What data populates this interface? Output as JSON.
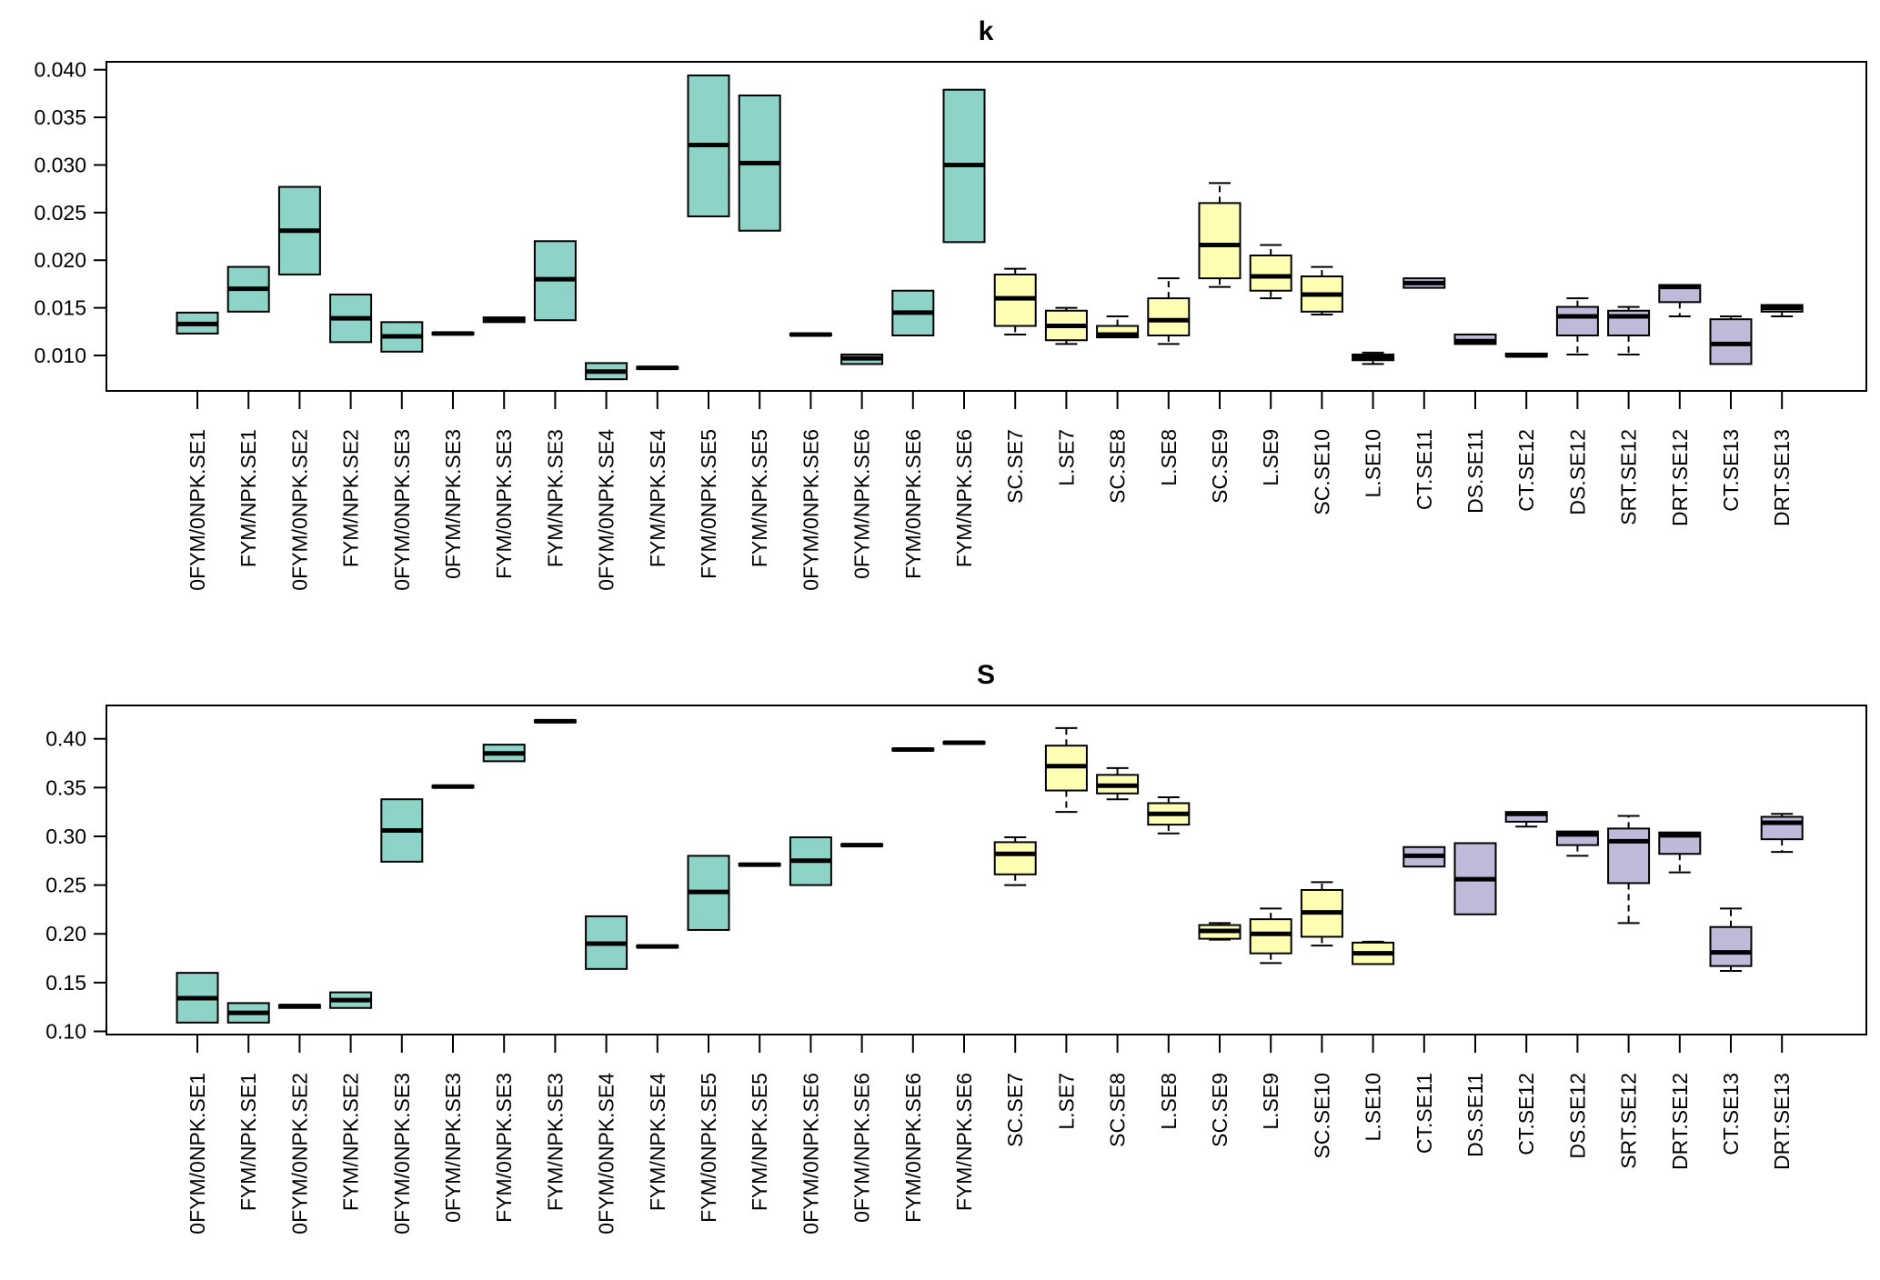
{
  "chart_data": [
    {
      "type": "boxplot",
      "title": "k",
      "xlabel": "",
      "ylabel": "",
      "ylim": [
        0.0075,
        0.0405
      ],
      "yticks": [
        "0.010",
        "0.015",
        "0.020",
        "0.025",
        "0.030",
        "0.035",
        "0.040"
      ],
      "ytick_values": [
        0.01,
        0.015,
        0.02,
        0.025,
        0.03,
        0.035,
        0.04
      ],
      "grid": false,
      "legend": "none",
      "categories": [
        "0FYM/0NPK.SE1",
        "FYM/NPK.SE1",
        "0FYM/0NPK.SE2",
        "FYM/NPK.SE2",
        "0FYM/0NPK.SE3",
        "0FYM/NPK.SE3",
        "FYM/0NPK.SE3",
        "FYM/NPK.SE3",
        "0FYM/0NPK.SE4",
        "FYM/NPK.SE4",
        "FYM/0NPK.SE5",
        "FYM/NPK.SE5",
        "0FYM/0NPK.SE6",
        "0FYM/NPK.SE6",
        "FYM/0NPK.SE6",
        "FYM/NPK.SE6",
        "SC.SE7",
        "L.SE7",
        "SC.SE8",
        "L.SE8",
        "SC.SE9",
        "L.SE9",
        "SC.SE10",
        "L.SE10",
        "CT.SE11",
        "DS.SE11",
        "CT.SE12",
        "DS.SE12",
        "SRT.SE12",
        "DRT.SE12",
        "CT.SE13",
        "DRT.SE13"
      ],
      "groups": [
        "A",
        "A",
        "A",
        "A",
        "A",
        "A",
        "A",
        "A",
        "A",
        "A",
        "A",
        "A",
        "A",
        "A",
        "A",
        "A",
        "B",
        "B",
        "B",
        "B",
        "B",
        "B",
        "B",
        "B",
        "C",
        "C",
        "C",
        "C",
        "C",
        "C",
        "C",
        "C"
      ],
      "boxes": [
        {
          "min": 0.0123,
          "q1": 0.0123,
          "median": 0.0133,
          "q3": 0.0145,
          "max": 0.0145
        },
        {
          "min": 0.0146,
          "q1": 0.0146,
          "median": 0.017,
          "q3": 0.0193,
          "max": 0.0193
        },
        {
          "min": 0.0185,
          "q1": 0.0185,
          "median": 0.0231,
          "q3": 0.0277,
          "max": 0.0277
        },
        {
          "min": 0.0114,
          "q1": 0.0114,
          "median": 0.0139,
          "q3": 0.0164,
          "max": 0.0164
        },
        {
          "min": 0.0104,
          "q1": 0.0104,
          "median": 0.012,
          "q3": 0.0135,
          "max": 0.0135
        },
        {
          "min": 0.0122,
          "q1": 0.0122,
          "median": 0.0123,
          "q3": 0.0124,
          "max": 0.0124
        },
        {
          "min": 0.0135,
          "q1": 0.0135,
          "median": 0.0138,
          "q3": 0.014,
          "max": 0.014
        },
        {
          "min": 0.0137,
          "q1": 0.0137,
          "median": 0.018,
          "q3": 0.022,
          "max": 0.022
        },
        {
          "min": 0.0075,
          "q1": 0.0075,
          "median": 0.0083,
          "q3": 0.0092,
          "max": 0.0092
        },
        {
          "min": 0.0086,
          "q1": 0.0086,
          "median": 0.0087,
          "q3": 0.0088,
          "max": 0.0088
        },
        {
          "min": 0.0246,
          "q1": 0.0246,
          "median": 0.0321,
          "q3": 0.0394,
          "max": 0.0394
        },
        {
          "min": 0.0231,
          "q1": 0.0231,
          "median": 0.0302,
          "q3": 0.0373,
          "max": 0.0373
        },
        {
          "min": 0.0121,
          "q1": 0.0121,
          "median": 0.0122,
          "q3": 0.0123,
          "max": 0.0123
        },
        {
          "min": 0.0091,
          "q1": 0.0091,
          "median": 0.0097,
          "q3": 0.0101,
          "max": 0.0101
        },
        {
          "min": 0.0121,
          "q1": 0.0121,
          "median": 0.0145,
          "q3": 0.0168,
          "max": 0.0168
        },
        {
          "min": 0.0219,
          "q1": 0.0219,
          "median": 0.03,
          "q3": 0.0379,
          "max": 0.0379
        },
        {
          "min": 0.0122,
          "q1": 0.0131,
          "median": 0.016,
          "q3": 0.0185,
          "max": 0.0191
        },
        {
          "min": 0.0112,
          "q1": 0.0116,
          "median": 0.0131,
          "q3": 0.0147,
          "max": 0.015
        },
        {
          "min": 0.0119,
          "q1": 0.0119,
          "median": 0.0122,
          "q3": 0.0131,
          "max": 0.0141
        },
        {
          "min": 0.0112,
          "q1": 0.0121,
          "median": 0.0137,
          "q3": 0.016,
          "max": 0.0181
        },
        {
          "min": 0.0172,
          "q1": 0.0181,
          "median": 0.0216,
          "q3": 0.026,
          "max": 0.0281
        },
        {
          "min": 0.016,
          "q1": 0.0168,
          "median": 0.0183,
          "q3": 0.0205,
          "max": 0.0216
        },
        {
          "min": 0.0143,
          "q1": 0.0146,
          "median": 0.0164,
          "q3": 0.0183,
          "max": 0.0193
        },
        {
          "min": 0.0091,
          "q1": 0.0095,
          "median": 0.0098,
          "q3": 0.0101,
          "max": 0.0103
        },
        {
          "min": 0.0171,
          "q1": 0.0171,
          "median": 0.0176,
          "q3": 0.0181,
          "max": 0.0181
        },
        {
          "min": 0.0112,
          "q1": 0.0112,
          "median": 0.0115,
          "q3": 0.0122,
          "max": 0.0122
        },
        {
          "min": 0.0099,
          "q1": 0.0099,
          "median": 0.01,
          "q3": 0.0102,
          "max": 0.0102
        },
        {
          "min": 0.0101,
          "q1": 0.0121,
          "median": 0.0141,
          "q3": 0.0151,
          "max": 0.016
        },
        {
          "min": 0.0101,
          "q1": 0.0121,
          "median": 0.0141,
          "q3": 0.0147,
          "max": 0.0151
        },
        {
          "min": 0.0141,
          "q1": 0.0156,
          "median": 0.0172,
          "q3": 0.0174,
          "max": 0.0174
        },
        {
          "min": 0.0091,
          "q1": 0.0091,
          "median": 0.0112,
          "q3": 0.0138,
          "max": 0.0141
        },
        {
          "min": 0.0141,
          "q1": 0.0146,
          "median": 0.015,
          "q3": 0.0153,
          "max": 0.0153
        }
      ]
    },
    {
      "type": "boxplot",
      "title": "S",
      "xlabel": "",
      "ylabel": "",
      "ylim": [
        0.096,
        0.433
      ],
      "yticks": [
        "0.10",
        "0.15",
        "0.20",
        "0.25",
        "0.30",
        "0.35",
        "0.40"
      ],
      "ytick_values": [
        0.1,
        0.15,
        0.2,
        0.25,
        0.3,
        0.35,
        0.4
      ],
      "grid": false,
      "legend": "none",
      "categories": [
        "0FYM/0NPK.SE1",
        "FYM/NPK.SE1",
        "0FYM/0NPK.SE2",
        "FYM/NPK.SE2",
        "0FYM/0NPK.SE3",
        "0FYM/NPK.SE3",
        "FYM/0NPK.SE3",
        "FYM/NPK.SE3",
        "0FYM/0NPK.SE4",
        "FYM/NPK.SE4",
        "FYM/0NPK.SE5",
        "FYM/NPK.SE5",
        "0FYM/0NPK.SE6",
        "0FYM/NPK.SE6",
        "FYM/0NPK.SE6",
        "FYM/NPK.SE6",
        "SC.SE7",
        "L.SE7",
        "SC.SE8",
        "L.SE8",
        "SC.SE9",
        "L.SE9",
        "SC.SE10",
        "L.SE10",
        "CT.SE11",
        "DS.SE11",
        "CT.SE12",
        "DS.SE12",
        "SRT.SE12",
        "DRT.SE12",
        "CT.SE13",
        "DRT.SE13"
      ],
      "groups": [
        "A",
        "A",
        "A",
        "A",
        "A",
        "A",
        "A",
        "A",
        "A",
        "A",
        "A",
        "A",
        "A",
        "A",
        "A",
        "A",
        "B",
        "B",
        "B",
        "B",
        "B",
        "B",
        "B",
        "B",
        "C",
        "C",
        "C",
        "C",
        "C",
        "C",
        "C",
        "C"
      ],
      "boxes": [
        {
          "min": 0.109,
          "q1": 0.109,
          "median": 0.134,
          "q3": 0.16,
          "max": 0.16
        },
        {
          "min": 0.109,
          "q1": 0.109,
          "median": 0.119,
          "q3": 0.129,
          "max": 0.129
        },
        {
          "min": 0.124,
          "q1": 0.124,
          "median": 0.126,
          "q3": 0.127,
          "max": 0.127
        },
        {
          "min": 0.124,
          "q1": 0.124,
          "median": 0.132,
          "q3": 0.14,
          "max": 0.14
        },
        {
          "min": 0.274,
          "q1": 0.274,
          "median": 0.306,
          "q3": 0.338,
          "max": 0.338
        },
        {
          "min": 0.35,
          "q1": 0.35,
          "median": 0.351,
          "q3": 0.352,
          "max": 0.352
        },
        {
          "min": 0.377,
          "q1": 0.377,
          "median": 0.385,
          "q3": 0.394,
          "max": 0.394
        },
        {
          "min": 0.417,
          "q1": 0.417,
          "median": 0.418,
          "q3": 0.419,
          "max": 0.419
        },
        {
          "min": 0.164,
          "q1": 0.164,
          "median": 0.19,
          "q3": 0.218,
          "max": 0.218
        },
        {
          "min": 0.186,
          "q1": 0.186,
          "median": 0.187,
          "q3": 0.188,
          "max": 0.188
        },
        {
          "min": 0.204,
          "q1": 0.204,
          "median": 0.243,
          "q3": 0.28,
          "max": 0.28
        },
        {
          "min": 0.27,
          "q1": 0.27,
          "median": 0.271,
          "q3": 0.272,
          "max": 0.272
        },
        {
          "min": 0.25,
          "q1": 0.25,
          "median": 0.275,
          "q3": 0.299,
          "max": 0.299
        },
        {
          "min": 0.29,
          "q1": 0.29,
          "median": 0.291,
          "q3": 0.292,
          "max": 0.292
        },
        {
          "min": 0.388,
          "q1": 0.388,
          "median": 0.389,
          "q3": 0.39,
          "max": 0.39
        },
        {
          "min": 0.395,
          "q1": 0.395,
          "median": 0.396,
          "q3": 0.397,
          "max": 0.397
        },
        {
          "min": 0.25,
          "q1": 0.261,
          "median": 0.282,
          "q3": 0.294,
          "max": 0.299
        },
        {
          "min": 0.325,
          "q1": 0.347,
          "median": 0.372,
          "q3": 0.393,
          "max": 0.411
        },
        {
          "min": 0.338,
          "q1": 0.344,
          "median": 0.352,
          "q3": 0.363,
          "max": 0.37
        },
        {
          "min": 0.303,
          "q1": 0.312,
          "median": 0.323,
          "q3": 0.334,
          "max": 0.34
        },
        {
          "min": 0.194,
          "q1": 0.195,
          "median": 0.203,
          "q3": 0.209,
          "max": 0.211
        },
        {
          "min": 0.17,
          "q1": 0.18,
          "median": 0.2,
          "q3": 0.215,
          "max": 0.226
        },
        {
          "min": 0.188,
          "q1": 0.197,
          "median": 0.222,
          "q3": 0.245,
          "max": 0.253
        },
        {
          "min": 0.169,
          "q1": 0.169,
          "median": 0.18,
          "q3": 0.191,
          "max": 0.192
        },
        {
          "min": 0.269,
          "q1": 0.269,
          "median": 0.28,
          "q3": 0.289,
          "max": 0.289
        },
        {
          "min": 0.22,
          "q1": 0.22,
          "median": 0.256,
          "q3": 0.293,
          "max": 0.293
        },
        {
          "min": 0.31,
          "q1": 0.315,
          "median": 0.323,
          "q3": 0.325,
          "max": 0.325
        },
        {
          "min": 0.28,
          "q1": 0.291,
          "median": 0.302,
          "q3": 0.305,
          "max": 0.305
        },
        {
          "min": 0.211,
          "q1": 0.252,
          "median": 0.295,
          "q3": 0.308,
          "max": 0.321
        },
        {
          "min": 0.263,
          "q1": 0.282,
          "median": 0.301,
          "q3": 0.304,
          "max": 0.304
        },
        {
          "min": 0.162,
          "q1": 0.167,
          "median": 0.181,
          "q3": 0.207,
          "max": 0.226
        },
        {
          "min": 0.284,
          "q1": 0.297,
          "median": 0.314,
          "q3": 0.32,
          "max": 0.323
        }
      ]
    }
  ],
  "group_colors": {
    "A": "#8DD3C7",
    "B": "#FFFFB3",
    "C": "#BEBADA"
  }
}
